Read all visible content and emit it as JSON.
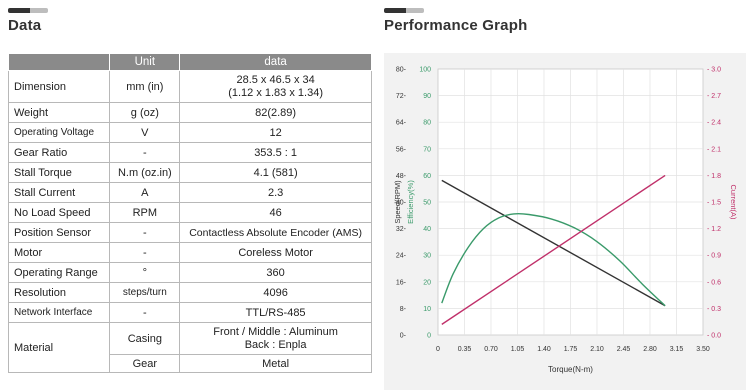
{
  "data_section": {
    "title": "Data"
  },
  "graph_section": {
    "title": "Performance Graph"
  },
  "table": {
    "headers": [
      "",
      "Unit",
      "data"
    ],
    "rows": [
      {
        "label": "Dimension",
        "unit": "mm (in)",
        "value": "28.5 x 46.5 x 34",
        "value2": "(1.12 x 1.83 x 1.34)"
      },
      {
        "label": "Weight",
        "unit": "g (oz)",
        "value": "82(2.89)"
      },
      {
        "label": "Operating Voltage",
        "unit": "V",
        "value": "12"
      },
      {
        "label": "Gear Ratio",
        "unit": "-",
        "value": "353.5 : 1"
      },
      {
        "label": "Stall Torque",
        "unit": "N.m (oz.in)",
        "value": "4.1 (581)"
      },
      {
        "label": "Stall Current",
        "unit": "A",
        "value": "2.3"
      },
      {
        "label": "No Load Speed",
        "unit": "RPM",
        "value": "46"
      },
      {
        "label": "Position Sensor",
        "unit": "-",
        "value": "Contactless Absolute Encoder (AMS)"
      },
      {
        "label": "Motor",
        "unit": "-",
        "value": "Coreless Motor"
      },
      {
        "label": "Operating Range",
        "unit": "°",
        "value": "360"
      },
      {
        "label": "Resolution",
        "unit": "steps/turn",
        "value": "4096"
      },
      {
        "label": "Network Interface",
        "unit": "-",
        "value": "TTL/RS-485"
      }
    ],
    "material": {
      "label": "Material",
      "casing_unit": "Casing",
      "casing_value": "Front / Middle : Aluminum",
      "casing_value2": "Back : Enpla",
      "gear_unit": "Gear",
      "gear_value": "Metal"
    }
  },
  "chart_data": {
    "type": "line",
    "xlabel": "Torque(N-m)",
    "xlim": [
      0,
      3.5
    ],
    "x_ticks": [
      "0",
      "0.35",
      "0.70",
      "1.05",
      "1.40",
      "1.75",
      "2.10",
      "2.45",
      "2.80",
      "3.15",
      "3.50"
    ],
    "axes": {
      "speed": {
        "label": "Speed(RPM)",
        "ylim": [
          0,
          80
        ],
        "ticks": [
          "0-",
          "8-",
          "16-",
          "24-",
          "32-",
          "40-",
          "48-",
          "56-",
          "64-",
          "72-",
          "80-"
        ],
        "color": "#333333"
      },
      "efficiency": {
        "label": "Efficiency(%)",
        "ylim": [
          0,
          100
        ],
        "ticks": [
          "0",
          "10",
          "20",
          "30",
          "40",
          "50",
          "60",
          "70",
          "80",
          "90",
          "100"
        ],
        "color": "#3a9a6a"
      },
      "current": {
        "label": "Current(A)",
        "ylim": [
          0,
          3.0
        ],
        "ticks": [
          "- 0.0",
          "- 0.3",
          "- 0.6",
          "- 0.9",
          "- 1.2",
          "- 1.5",
          "- 1.8",
          "- 2.1",
          "- 2.4",
          "- 2.7",
          "- 3.0"
        ],
        "color": "#c0306a"
      }
    },
    "series": [
      {
        "axis": "speed",
        "x": [
          0.05,
          3.0
        ],
        "y": [
          46.5,
          8.8
        ]
      },
      {
        "axis": "efficiency",
        "x": [
          0.05,
          0.2,
          0.4,
          0.6,
          0.8,
          1.0,
          1.2,
          1.5,
          1.8,
          2.1,
          2.4,
          2.7,
          3.0
        ],
        "y": [
          12,
          23,
          33,
          40,
          44,
          45.5,
          45.3,
          43.6,
          40.3,
          35.1,
          27.9,
          19.1,
          11
        ]
      },
      {
        "axis": "current",
        "x": [
          0.05,
          3.0
        ],
        "y": [
          0.12,
          1.8
        ]
      }
    ],
    "grid": true,
    "colors": {
      "speed": "#333333",
      "efficiency": "#3a9a6a",
      "current": "#c0306a"
    }
  }
}
